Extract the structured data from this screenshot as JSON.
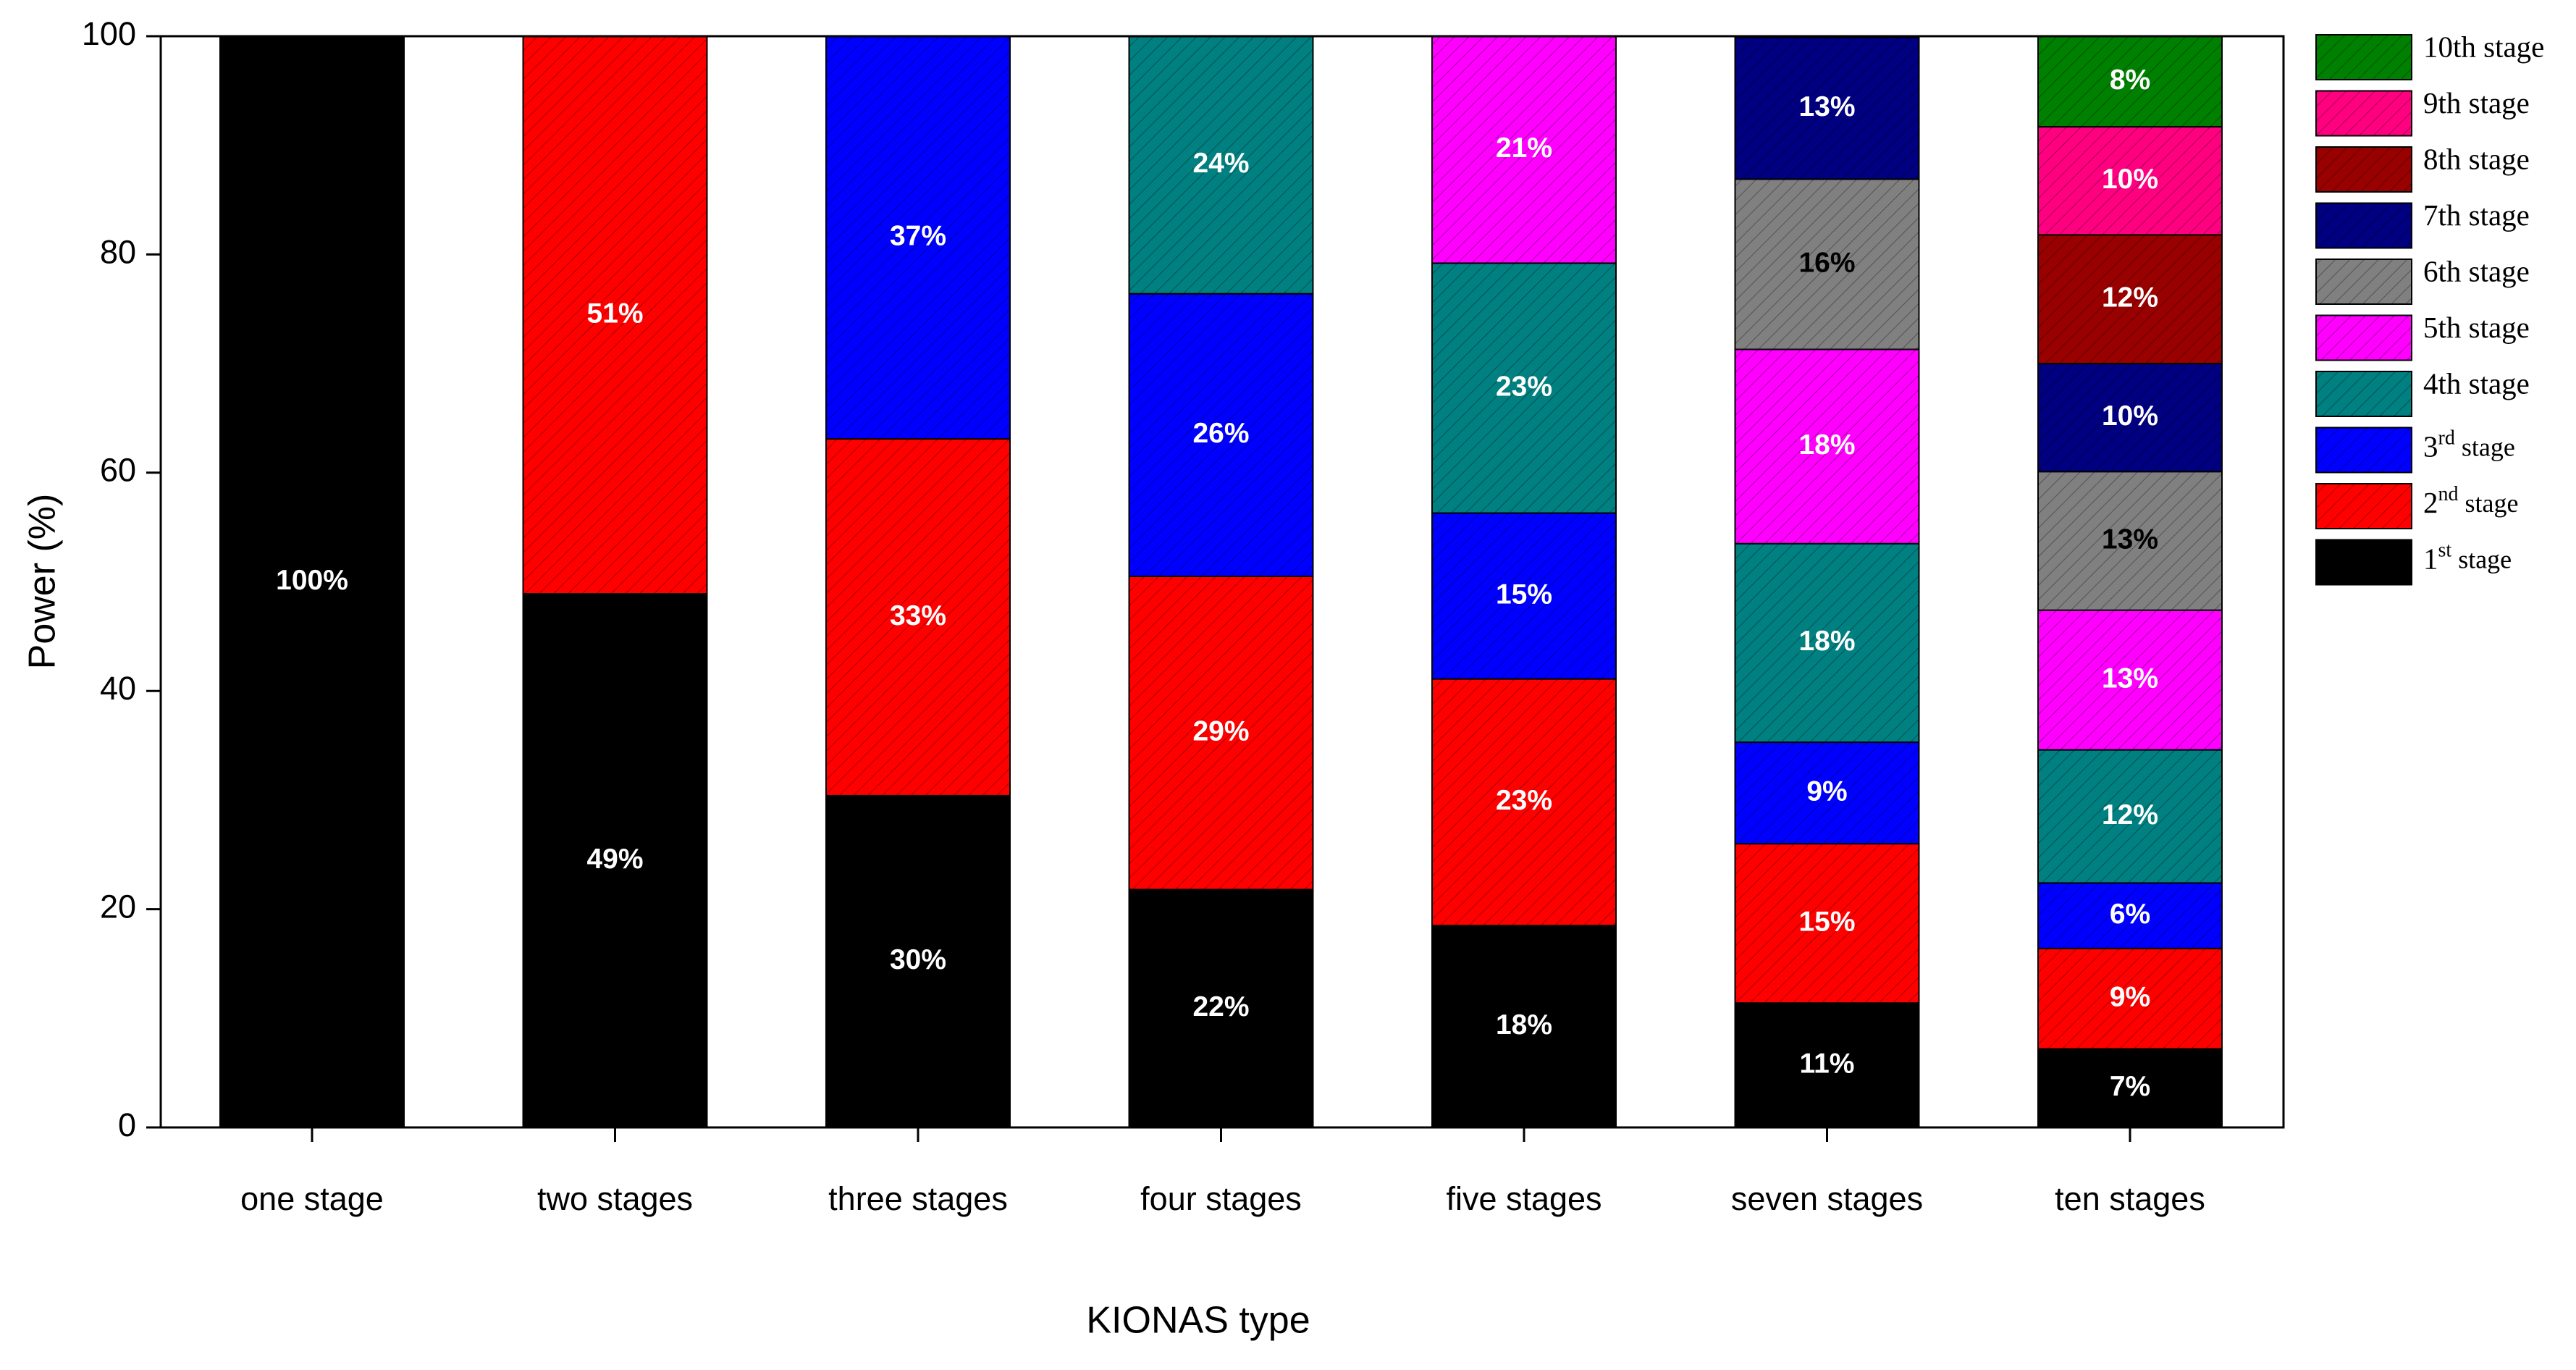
{
  "chart_data": {
    "type": "stacked-bar",
    "x_label": "KIONAS type",
    "y_label": "Power (%)",
    "categories": [
      "one stage",
      "two stages",
      "three stages",
      "four stages",
      "five stages",
      "seven stages",
      "ten stages"
    ],
    "ylim": [
      0,
      100
    ],
    "yticks": [
      0,
      20,
      40,
      60,
      80,
      100
    ],
    "hatch": true,
    "legend": "right",
    "series": [
      {
        "name": "1st stage",
        "color": "#000000",
        "values": [
          100,
          48.9,
          30.4,
          21.8,
          18.5,
          11.4,
          7.2
        ],
        "value_labels": [
          "100%",
          "49%",
          "30%",
          "22%",
          "18%",
          "11%",
          "7%"
        ]
      },
      {
        "name": "2nd stage",
        "color": "#ff0000",
        "values": [
          null,
          51.1,
          32.7,
          28.7,
          22.6,
          14.6,
          9.2
        ],
        "value_labels": [
          null,
          "51%",
          "33%",
          "29%",
          "23%",
          "15%",
          "9%"
        ]
      },
      {
        "name": "3rd stage",
        "color": "#0000ff",
        "values": [
          null,
          null,
          36.9,
          25.9,
          15.2,
          9.3,
          6.0
        ],
        "value_labels": [
          null,
          null,
          "37%",
          "26%",
          "15%",
          "9%",
          "6%"
        ]
      },
      {
        "name": "4th stage",
        "color": "#008080",
        "values": [
          null,
          null,
          null,
          23.6,
          22.9,
          18.2,
          12.2
        ],
        "value_labels": [
          null,
          null,
          null,
          "24%",
          "23%",
          "18%",
          "12%"
        ]
      },
      {
        "name": "5th stage",
        "color": "#ff00ff",
        "values": [
          null,
          null,
          null,
          null,
          20.8,
          17.8,
          12.8
        ],
        "value_labels": [
          null,
          null,
          null,
          null,
          "21%",
          "18%",
          "13%"
        ]
      },
      {
        "name": "6th stage",
        "color": "#808080",
        "label_color": "#000000",
        "values": [
          null,
          null,
          null,
          null,
          null,
          15.6,
          12.7
        ],
        "value_labels": [
          null,
          null,
          null,
          null,
          null,
          "16%",
          "13%"
        ]
      },
      {
        "name": "7th stage",
        "color": "#000080",
        "values": [
          null,
          null,
          null,
          null,
          null,
          13.0,
          9.9
        ],
        "value_labels": [
          null,
          null,
          null,
          null,
          null,
          "13%",
          "10%"
        ]
      },
      {
        "name": "8th stage",
        "color": "#990000",
        "values": [
          null,
          null,
          null,
          null,
          null,
          null,
          11.8
        ],
        "value_labels": [
          null,
          null,
          null,
          null,
          null,
          null,
          "12%"
        ]
      },
      {
        "name": "9th stage",
        "color": "#ff0080",
        "values": [
          null,
          null,
          null,
          null,
          null,
          null,
          9.9
        ],
        "value_labels": [
          null,
          null,
          null,
          null,
          null,
          null,
          "10%"
        ]
      },
      {
        "name": "10th stage",
        "color": "#008000",
        "values": [
          null,
          null,
          null,
          null,
          null,
          null,
          8.3
        ],
        "value_labels": [
          null,
          null,
          null,
          null,
          null,
          null,
          "8%"
        ]
      }
    ]
  }
}
